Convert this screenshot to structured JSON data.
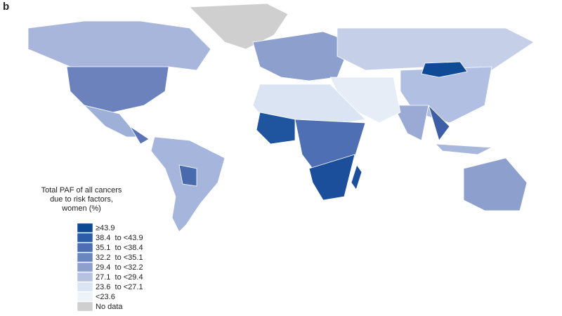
{
  "panel_label": "b",
  "legend": {
    "title": [
      "Total PAF of all cancers",
      "due to risk factors,",
      "women (%)"
    ],
    "items": [
      {
        "label": "≥43.9",
        "color": "#0d4a93"
      },
      {
        "label": "38.4  to <43.9",
        "color": "#2d5da7"
      },
      {
        "label": "35.1  to <38.4",
        "color": "#4a6fb3"
      },
      {
        "label": "32.2  to <35.1",
        "color": "#6a85c0"
      },
      {
        "label": "29.4  to <32.2",
        "color": "#8c9fcd"
      },
      {
        "label": "27.1  to <29.4",
        "color": "#b5c2e0"
      },
      {
        "label": "23.6  to <27.1",
        "color": "#dbe4f2"
      },
      {
        "label": "<23.6",
        "color": "#eef3fa"
      },
      {
        "label": "No data",
        "color": "#cfcfcf"
      }
    ]
  }
}
